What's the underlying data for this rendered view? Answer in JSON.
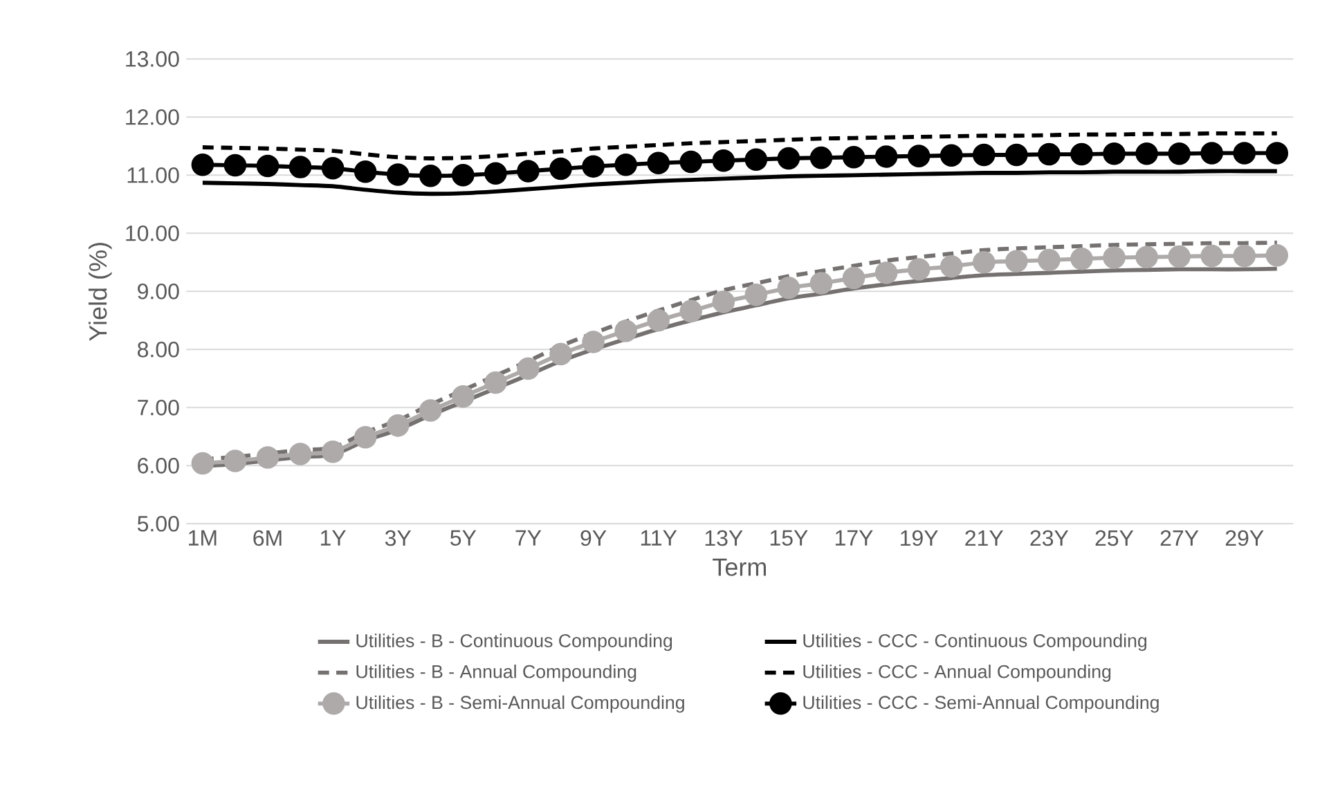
{
  "chart_data": {
    "type": "line",
    "xlabel": "Term",
    "ylabel": "Yield (%)",
    "categories": [
      "1M",
      null,
      "6M",
      null,
      "1Y",
      null,
      "3Y",
      null,
      "5Y",
      null,
      "7Y",
      null,
      "9Y",
      null,
      "11Y",
      null,
      "13Y",
      null,
      "15Y",
      null,
      "17Y",
      null,
      "19Y",
      null,
      "21Y",
      null,
      "23Y",
      null,
      "25Y",
      null,
      "27Y",
      null,
      "29Y",
      null
    ],
    "ylim": [
      5,
      13
    ],
    "yticks": [
      {
        "value": 5,
        "label": "5.00"
      },
      {
        "value": 6,
        "label": "6.00"
      },
      {
        "value": 7,
        "label": "7.00"
      },
      {
        "value": 8,
        "label": "8.00"
      },
      {
        "value": 9,
        "label": "9.00"
      },
      {
        "value": 10,
        "label": "10.00"
      },
      {
        "value": 11,
        "label": "11.00"
      },
      {
        "value": 12,
        "label": "12.00"
      },
      {
        "value": 13,
        "label": "13.00"
      }
    ],
    "grid": "y",
    "legend": "bottom",
    "series": [
      {
        "name": "Utilities - B - Continuous Compounding",
        "color": "#767171",
        "line_style": "solid",
        "marker": "none",
        "values": [
          5.99,
          6.03,
          6.09,
          6.15,
          6.19,
          6.43,
          6.62,
          6.87,
          7.1,
          7.33,
          7.56,
          7.8,
          8.0,
          8.18,
          8.35,
          8.5,
          8.64,
          8.76,
          8.88,
          8.96,
          9.05,
          9.12,
          9.18,
          9.23,
          9.28,
          9.3,
          9.32,
          9.34,
          9.36,
          9.37,
          9.38,
          9.38,
          9.38,
          9.39
        ]
      },
      {
        "name": "Utilities - B - Annual Compounding",
        "color": "#767171",
        "line_style": "dashed",
        "marker": "none",
        "values": [
          6.11,
          6.15,
          6.21,
          6.27,
          6.31,
          6.57,
          6.78,
          7.05,
          7.3,
          7.55,
          7.8,
          8.06,
          8.28,
          8.48,
          8.67,
          8.85,
          9.02,
          9.14,
          9.26,
          9.35,
          9.44,
          9.53,
          9.59,
          9.65,
          9.71,
          9.74,
          9.76,
          9.78,
          9.8,
          9.81,
          9.82,
          9.83,
          9.83,
          9.84
        ]
      },
      {
        "name": "Utilities - B - Semi-Annual Compounding",
        "color": "#aeaaaa",
        "line_style": "solid",
        "marker": "circle",
        "values": [
          6.04,
          6.08,
          6.14,
          6.2,
          6.24,
          6.49,
          6.69,
          6.95,
          7.19,
          7.43,
          7.67,
          7.92,
          8.13,
          8.32,
          8.5,
          8.66,
          8.82,
          8.94,
          9.06,
          9.14,
          9.23,
          9.32,
          9.38,
          9.43,
          9.5,
          9.52,
          9.54,
          9.56,
          9.58,
          9.59,
          9.6,
          9.61,
          9.61,
          9.62
        ]
      },
      {
        "name": "Utilities - CCC - Continuous Compounding",
        "color": "#000000",
        "line_style": "solid",
        "marker": "none",
        "values": [
          10.87,
          10.86,
          10.85,
          10.83,
          10.81,
          10.75,
          10.7,
          10.68,
          10.69,
          10.72,
          10.76,
          10.8,
          10.84,
          10.87,
          10.9,
          10.92,
          10.94,
          10.96,
          10.98,
          10.99,
          11.0,
          11.01,
          11.02,
          11.03,
          11.04,
          11.04,
          11.05,
          11.05,
          11.06,
          11.06,
          11.06,
          11.07,
          11.07,
          11.07
        ]
      },
      {
        "name": "Utilities - CCC - Annual Compounding",
        "color": "#000000",
        "line_style": "dashed",
        "marker": "none",
        "values": [
          11.48,
          11.47,
          11.46,
          11.44,
          11.42,
          11.36,
          11.31,
          11.29,
          11.3,
          11.33,
          11.37,
          11.41,
          11.46,
          11.49,
          11.52,
          11.55,
          11.57,
          11.59,
          11.61,
          11.63,
          11.64,
          11.65,
          11.66,
          11.67,
          11.68,
          11.68,
          11.69,
          11.7,
          11.7,
          11.71,
          11.71,
          11.72,
          11.72,
          11.72
        ]
      },
      {
        "name": "Utilities - CCC - Semi-Annual Compounding",
        "color": "#000000",
        "line_style": "solid",
        "marker": "circle",
        "values": [
          11.18,
          11.17,
          11.16,
          11.14,
          11.12,
          11.06,
          11.01,
          10.99,
          11.0,
          11.03,
          11.07,
          11.11,
          11.15,
          11.18,
          11.21,
          11.23,
          11.25,
          11.27,
          11.29,
          11.3,
          11.31,
          11.32,
          11.33,
          11.34,
          11.35,
          11.35,
          11.36,
          11.36,
          11.37,
          11.37,
          11.37,
          11.38,
          11.38,
          11.38
        ]
      }
    ]
  }
}
